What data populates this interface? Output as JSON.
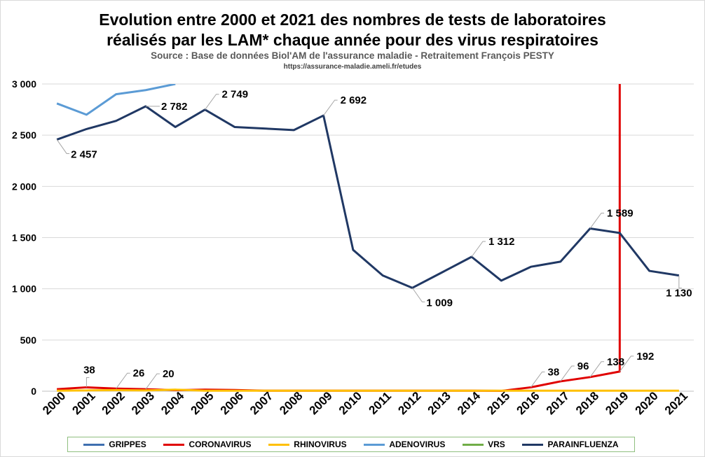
{
  "chart_data": {
    "type": "line",
    "title_line1": "Evolution entre 2000 et 2021 des nombres de tests de laboratoires",
    "title_line2": "réalisés par les LAM* chaque année pour des virus respiratoires",
    "subtitle": "Source : Base de données Biol'AM de l'assurance maladie - Retraitement François PESTY",
    "url": "https://assurance-maladie.ameli.fr/etudes",
    "x": [
      "2000",
      "2001",
      "2002",
      "2003",
      "2004",
      "2005",
      "2006",
      "2007",
      "2008",
      "2009",
      "2010",
      "2011",
      "2012",
      "2013",
      "2014",
      "2015",
      "2016",
      "2017",
      "2018",
      "2019",
      "2020",
      "2021"
    ],
    "ylim": [
      0,
      3000
    ],
    "yticks": [
      0,
      500,
      1000,
      1500,
      2000,
      2500,
      3000
    ],
    "ytick_labels": [
      "0",
      "500",
      "1 000",
      "1 500",
      "2 000",
      "2 500",
      "3 000"
    ],
    "grid": true,
    "legend_position": "bottom",
    "series": [
      {
        "name": "GRIPPES",
        "color": "#3f6fb0",
        "values": [
          null,
          null,
          null,
          null,
          null,
          null,
          null,
          null,
          null,
          null,
          null,
          null,
          null,
          null,
          null,
          null,
          null,
          null,
          null,
          null,
          null,
          null
        ],
        "vertical_spike_at": null
      },
      {
        "name": "CORONAVIRUS",
        "color": "#e00000",
        "values": [
          20,
          38,
          26,
          20,
          10,
          15,
          12,
          5,
          5,
          5,
          5,
          5,
          5,
          5,
          5,
          3,
          38,
          96,
          138,
          192,
          null,
          null
        ],
        "vertical_spike_at": "2019"
      },
      {
        "name": "RHINOVIRUS",
        "color": "#ffc000",
        "values": [
          5,
          8,
          10,
          8,
          15,
          5,
          5,
          5,
          5,
          5,
          5,
          5,
          5,
          5,
          5,
          5,
          5,
          5,
          5,
          5,
          5,
          5
        ],
        "vertical_spike_at": null
      },
      {
        "name": "ADENOVIRUS",
        "color": "#5b9bd5",
        "values": [
          2810,
          2700,
          2900,
          2940,
          3000,
          null,
          null,
          null,
          null,
          null,
          null,
          null,
          null,
          null,
          null,
          null,
          null,
          null,
          null,
          null,
          null,
          null
        ],
        "vertical_spike_at": null
      },
      {
        "name": "VRS",
        "color": "#70ad47",
        "values": [
          null,
          null,
          null,
          null,
          null,
          null,
          null,
          null,
          null,
          null,
          null,
          null,
          null,
          null,
          null,
          null,
          null,
          null,
          null,
          null,
          null,
          null
        ],
        "vertical_spike_at": null
      },
      {
        "name": "PARAINFLUENZA",
        "color": "#203864",
        "values": [
          2457,
          2560,
          2640,
          2782,
          2580,
          2749,
          2580,
          2565,
          2550,
          2692,
          1380,
          1130,
          1009,
          1160,
          1312,
          1080,
          1215,
          1265,
          1589,
          1545,
          1175,
          1130
        ],
        "vertical_spike_at": null
      }
    ],
    "annotations": [
      {
        "series": "PARAINFLUENZA",
        "x": "2000",
        "value": 2457,
        "label": "2 457",
        "side": "below"
      },
      {
        "series": "PARAINFLUENZA",
        "x": "2003",
        "value": 2782,
        "label": "2 782",
        "side": "right"
      },
      {
        "series": "PARAINFLUENZA",
        "x": "2005",
        "value": 2749,
        "label": "2 749",
        "side": "above"
      },
      {
        "series": "PARAINFLUENZA",
        "x": "2009",
        "value": 2692,
        "label": "2 692",
        "side": "above"
      },
      {
        "series": "PARAINFLUENZA",
        "x": "2012",
        "value": 1009,
        "label": "1 009",
        "side": "below"
      },
      {
        "series": "PARAINFLUENZA",
        "x": "2014",
        "value": 1312,
        "label": "1 312",
        "side": "above"
      },
      {
        "series": "PARAINFLUENZA",
        "x": "2018",
        "value": 1589,
        "label": "1 589",
        "side": "above"
      },
      {
        "series": "PARAINFLUENZA",
        "x": "2021",
        "value": 1130,
        "label": "1 130",
        "side": "below"
      },
      {
        "series": "CORONAVIRUS",
        "x": "2001",
        "value": 38,
        "label": "38",
        "side": "above"
      },
      {
        "series": "CORONAVIRUS",
        "x": "2002",
        "value": 26,
        "label": "26",
        "side": "above"
      },
      {
        "series": "CORONAVIRUS",
        "x": "2003",
        "value": 20,
        "label": "20",
        "side": "above"
      },
      {
        "series": "CORONAVIRUS",
        "x": "2016",
        "value": 38,
        "label": "38",
        "side": "above"
      },
      {
        "series": "CORONAVIRUS",
        "x": "2017",
        "value": 96,
        "label": "96",
        "side": "above"
      },
      {
        "series": "CORONAVIRUS",
        "x": "2018",
        "value": 138,
        "label": "138",
        "side": "above"
      },
      {
        "series": "CORONAVIRUS",
        "x": "2019",
        "value": 192,
        "label": "192",
        "side": "above"
      }
    ]
  }
}
